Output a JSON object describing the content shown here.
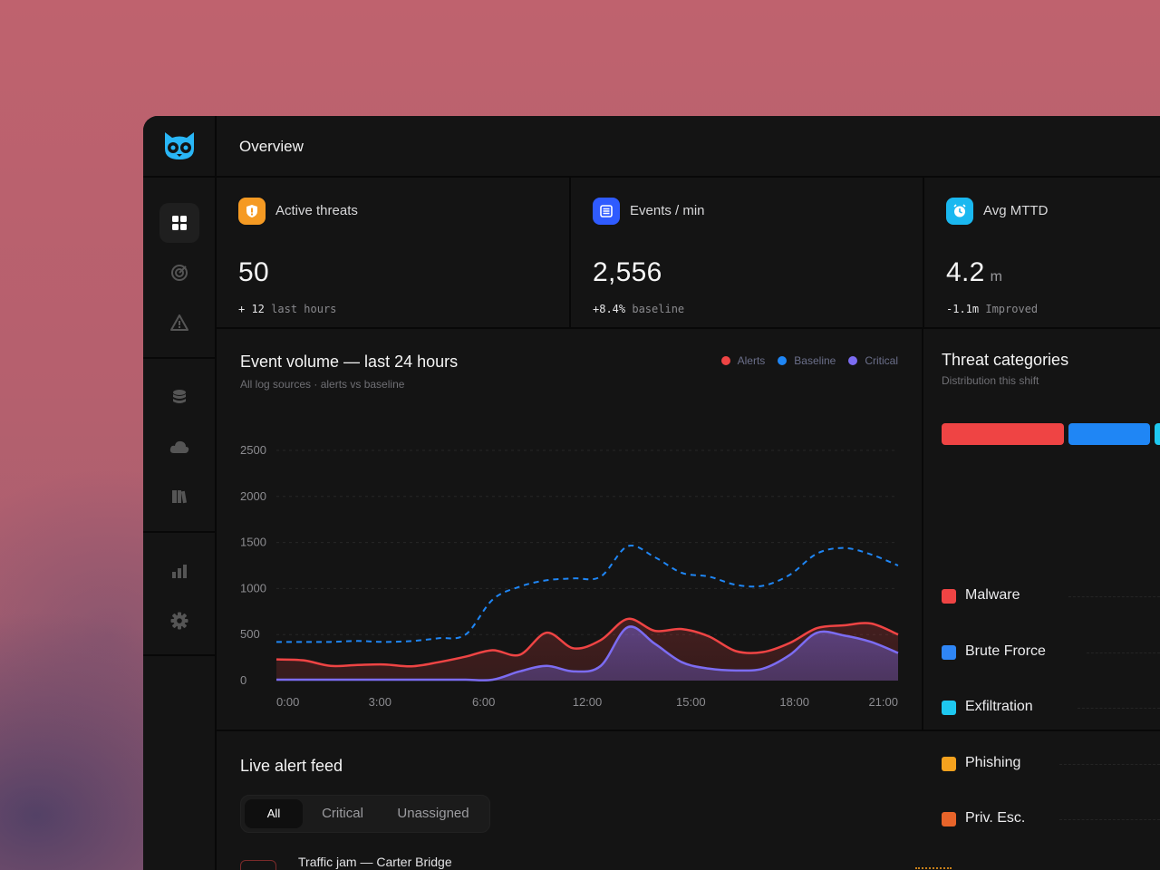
{
  "header": {
    "title": "Overview"
  },
  "sidebar": {
    "logo_icon": "owl-logo-icon",
    "groups": [
      {
        "items": [
          {
            "name": "dashboard",
            "icon": "grid-icon",
            "active": true
          },
          {
            "name": "targets",
            "icon": "target-icon",
            "active": false
          },
          {
            "name": "alerts",
            "icon": "warning-icon",
            "active": false
          }
        ]
      },
      {
        "items": [
          {
            "name": "database",
            "icon": "database-icon",
            "active": false
          },
          {
            "name": "cloud",
            "icon": "cloud-icon",
            "active": false
          },
          {
            "name": "library",
            "icon": "books-icon",
            "active": false
          }
        ]
      },
      {
        "items": [
          {
            "name": "reports",
            "icon": "bar-chart-icon",
            "active": false
          },
          {
            "name": "settings",
            "icon": "gear-icon",
            "active": false
          }
        ]
      }
    ]
  },
  "stats": [
    {
      "label": "Active threats",
      "value": "50",
      "unit": "",
      "delta": "+ 12",
      "note": "last hours",
      "icon": "shield-alert-icon",
      "color": "#f59a23"
    },
    {
      "label": "Events / min",
      "value": "2,556",
      "unit": "",
      "delta": "+8.4%",
      "note": "baseline",
      "icon": "log-stack-icon",
      "color": "#2f5bff"
    },
    {
      "label": "Avg MTTD",
      "value": "4.2",
      "unit": "m",
      "delta": "-1.1m",
      "note": "Improved",
      "icon": "clock-icon",
      "color": "#1ab8f0"
    }
  ],
  "chart": {
    "title": "Event volume — last 24 hours",
    "subtitle": "All log sources · alerts vs baseline",
    "legend": [
      {
        "label": "Alerts",
        "color": "#ef4444"
      },
      {
        "label": "Baseline",
        "color": "#1f86f5"
      },
      {
        "label": "Critical",
        "color": "#7c6cf2"
      }
    ]
  },
  "chart_data": {
    "type": "line",
    "title": "Event volume — last 24 hours",
    "subtitle": "All log sources · alerts vs baseline",
    "xlabel": "",
    "ylabel": "",
    "x_ticks": [
      "0:00",
      "3:00",
      "6:00",
      "12:00",
      "15:00",
      "18:00",
      "21:00"
    ],
    "y_ticks": [
      0,
      500,
      1000,
      1500,
      2000,
      2500
    ],
    "ylim": [
      0,
      2500
    ],
    "grid": true,
    "legend_position": "top-right",
    "x": [
      0,
      1,
      2,
      3,
      4,
      5,
      6,
      7,
      8,
      9,
      10,
      11,
      12,
      13,
      14,
      15,
      16,
      17,
      18,
      19,
      20,
      21,
      22,
      23
    ],
    "series": [
      {
        "name": "Alerts",
        "color": "#ef4444",
        "style": "solid-area",
        "values": [
          230,
          220,
          160,
          170,
          175,
          155,
          200,
          260,
          330,
          280,
          520,
          350,
          440,
          670,
          540,
          560,
          480,
          320,
          310,
          410,
          570,
          600,
          620,
          500
        ]
      },
      {
        "name": "Baseline",
        "color": "#1f86f5",
        "style": "dashed",
        "values": [
          420,
          420,
          420,
          430,
          420,
          430,
          460,
          500,
          880,
          1020,
          1090,
          1110,
          1130,
          1460,
          1340,
          1170,
          1130,
          1040,
          1030,
          1150,
          1380,
          1440,
          1370,
          1250
        ]
      },
      {
        "name": "Critical",
        "color": "#7c6cf2",
        "style": "solid-area",
        "values": [
          10,
          10,
          10,
          10,
          10,
          10,
          10,
          10,
          10,
          100,
          160,
          100,
          160,
          580,
          400,
          200,
          130,
          110,
          130,
          280,
          520,
          490,
          420,
          300
        ]
      }
    ]
  },
  "categories": {
    "title": "Threat categories",
    "subtitle": "Distribution this shift",
    "items": [
      {
        "name": "Malware",
        "color": "#ef4444"
      },
      {
        "name": "Brute Frorce",
        "color": "#2f86f6"
      },
      {
        "name": "Exfiltration",
        "color": "#1ec8f0"
      },
      {
        "name": "Phishing",
        "color": "#f5a21e"
      },
      {
        "name": "Priv. Esc.",
        "color": "#e8642a"
      }
    ]
  },
  "feed": {
    "title": "Live alert feed",
    "tabs": [
      {
        "label": "All",
        "active": true
      },
      {
        "label": "Critical",
        "active": false
      },
      {
        "label": "Unassigned",
        "active": false
      }
    ],
    "items": [
      {
        "title": "Traffic jam — Carter Bridge"
      }
    ]
  }
}
